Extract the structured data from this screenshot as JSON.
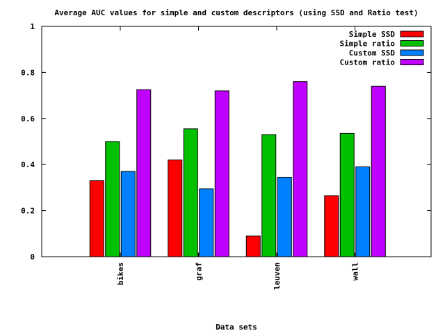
{
  "chart_data": {
    "type": "bar",
    "title": "Average AUC values for simple and custom descriptors (using SSD and Ratio test)",
    "xlabel": "Data sets",
    "ylabel": "",
    "ylim": [
      0,
      1
    ],
    "yticks": [
      "0",
      "0.2",
      "0.4",
      "0.6",
      "0.8",
      "1"
    ],
    "categories": [
      "bikes",
      "graf",
      "leuven",
      "wall"
    ],
    "series": [
      {
        "name": "Simple SSD",
        "color": "#ff0000",
        "values": [
          0.33,
          0.42,
          0.09,
          0.265
        ]
      },
      {
        "name": "Simple ratio",
        "color": "#00c000",
        "values": [
          0.5,
          0.555,
          0.53,
          0.535
        ]
      },
      {
        "name": "Custom SSD",
        "color": "#0080ff",
        "values": [
          0.37,
          0.295,
          0.345,
          0.39
        ]
      },
      {
        "name": "Custom ratio",
        "color": "#c000ff",
        "values": [
          0.725,
          0.72,
          0.76,
          0.74
        ]
      }
    ],
    "legend_position": "top-right",
    "grid": false
  }
}
